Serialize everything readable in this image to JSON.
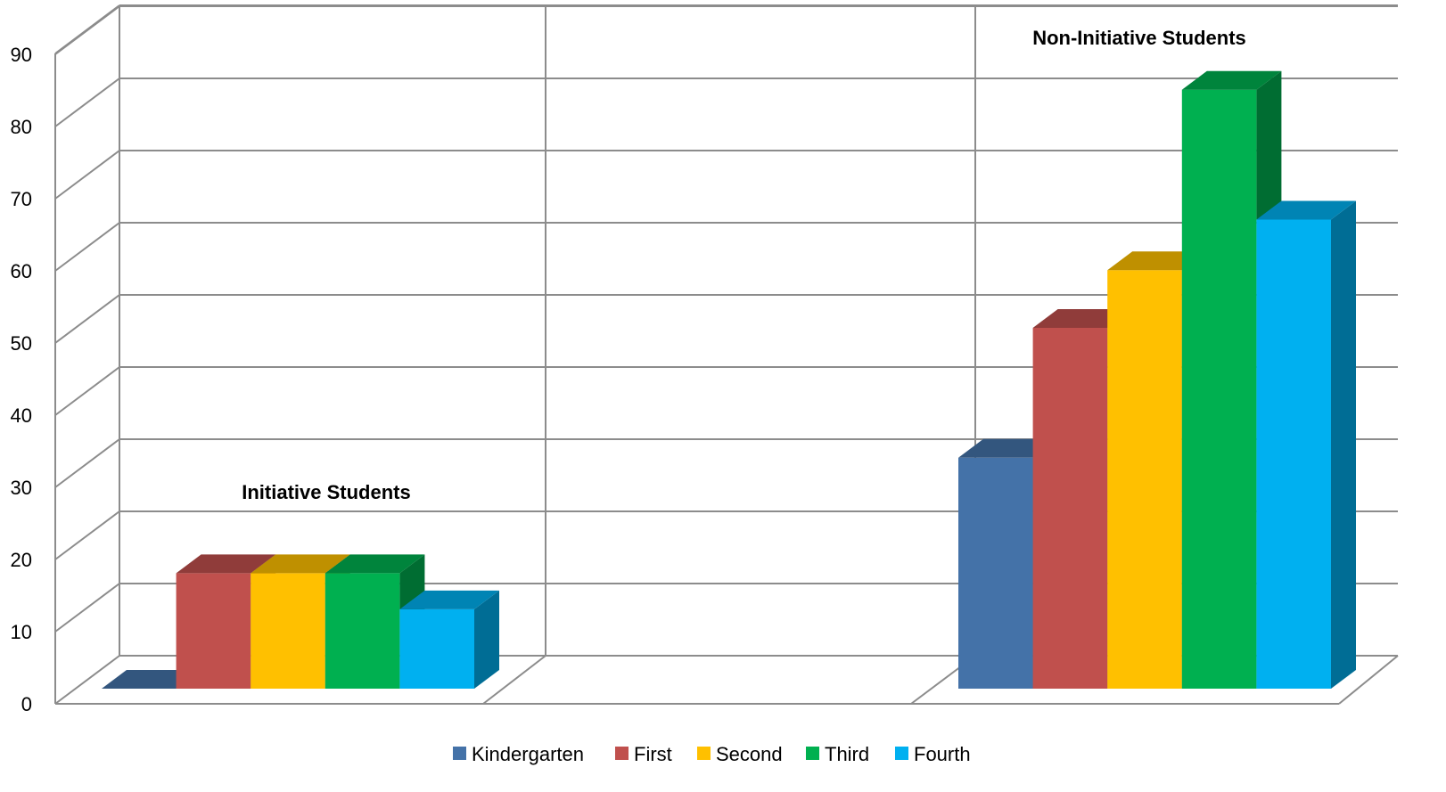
{
  "chart_data": {
    "type": "bar",
    "style": "3d-clustered-column",
    "categories": [
      "Initiative Students",
      "",
      "Non-Initiative Students"
    ],
    "series": [
      {
        "name": "Kindergarten",
        "values": [
          0,
          null,
          32
        ],
        "color": "#4472A8"
      },
      {
        "name": "First",
        "values": [
          16,
          null,
          50
        ],
        "color": "#C0504D"
      },
      {
        "name": "Second",
        "values": [
          16,
          null,
          58
        ],
        "color": "#FFC000"
      },
      {
        "name": "Third",
        "values": [
          16,
          null,
          83
        ],
        "color": "#00B050"
      },
      {
        "name": "Fourth",
        "values": [
          11,
          null,
          65
        ],
        "color": "#00B0F0"
      }
    ],
    "group_labels": [
      {
        "text": "Initiative Students",
        "group": 0
      },
      {
        "text": "Non-Initiative Students",
        "group": 2
      }
    ],
    "yticks": [
      "0",
      "10",
      "20",
      "30",
      "40",
      "50",
      "60",
      "70",
      "80",
      "90"
    ],
    "ylim": [
      0,
      90
    ],
    "grid": true,
    "legend_position": "bottom",
    "title": "",
    "xlabel": "",
    "ylabel": ""
  }
}
